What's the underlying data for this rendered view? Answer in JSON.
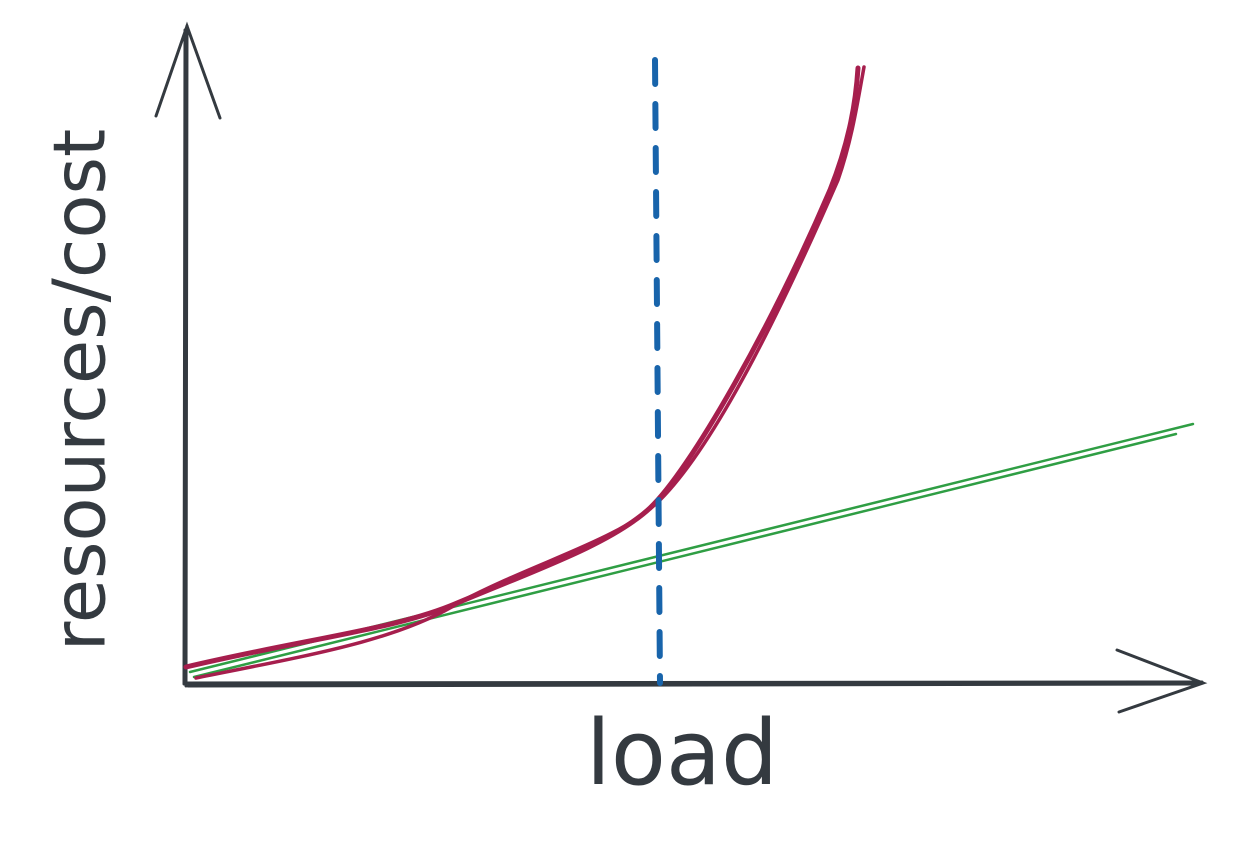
{
  "y_axis_label": "resources/cost",
  "x_axis_label": "load"
}
